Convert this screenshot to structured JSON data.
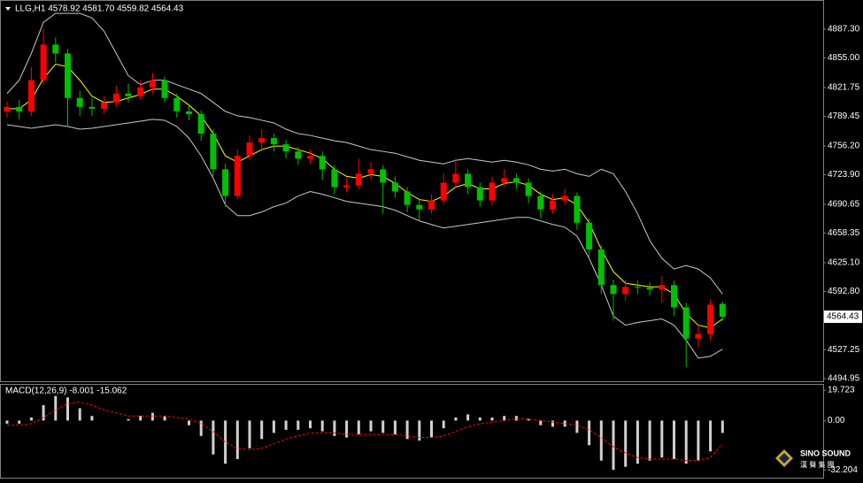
{
  "chart_data": [
    {
      "type": "candlestick",
      "title": "LLG,H1  4578.92 4581.70 4559.82 4564.43",
      "price_label": 4564.43,
      "up_color": "#ff0000",
      "down_color": "#00c000",
      "ylim": [
        4491,
        4920
      ],
      "yticks": [
        {
          "value": 4887.3,
          "label": "4887.30"
        },
        {
          "value": 4855,
          "label": "4855.00"
        },
        {
          "value": 4821.75,
          "label": "4821.75"
        },
        {
          "value": 4789.45,
          "label": "4789.45"
        },
        {
          "value": 4756.2,
          "label": "4756.20"
        },
        {
          "value": 4723.9,
          "label": "4723.90"
        },
        {
          "value": 4690.65,
          "label": "4690.65"
        },
        {
          "value": 4658.35,
          "label": "4658.35"
        },
        {
          "value": 4625.1,
          "label": "4625.10"
        },
        {
          "value": 4592.8,
          "label": "4592.80"
        },
        {
          "value": 4560.5,
          "label": "4560.50"
        },
        {
          "value": 4527.25,
          "label": "4527.25"
        },
        {
          "value": 4494.95,
          "label": "4494.95"
        }
      ],
      "open": [
        4795,
        4800,
        4795,
        4830,
        4870,
        4860,
        4810,
        4800,
        4798,
        4805,
        4815,
        4812,
        4822,
        4830,
        4810,
        4795,
        4792,
        4770,
        4730,
        4700,
        4745,
        4760,
        4765,
        4758,
        4750,
        4742,
        4745,
        4730,
        4710,
        4712,
        4725,
        4730,
        4715,
        4705,
        4690,
        4685,
        4695,
        4715,
        4725,
        4710,
        4695,
        4715,
        4720,
        4715,
        4700,
        4685,
        4695,
        4700,
        4670,
        4640,
        4600,
        4590,
        4598,
        4597,
        4595,
        4600,
        4575,
        4540,
        4545,
        4578.92
      ],
      "high": [
        4806,
        4808,
        4845,
        4888,
        4878,
        4865,
        4818,
        4810,
        4812,
        4824,
        4826,
        4830,
        4838,
        4834,
        4815,
        4802,
        4796,
        4775,
        4736,
        4752,
        4768,
        4775,
        4770,
        4763,
        4755,
        4752,
        4750,
        4735,
        4720,
        4742,
        4738,
        4735,
        4722,
        4710,
        4696,
        4702,
        4725,
        4742,
        4730,
        4715,
        4722,
        4730,
        4725,
        4720,
        4705,
        4702,
        4708,
        4704,
        4675,
        4645,
        4606,
        4606,
        4605,
        4603,
        4610,
        4605,
        4580,
        4555,
        4584,
        4581.7
      ],
      "low": [
        4788,
        4786,
        4790,
        4825,
        4850,
        4778,
        4790,
        4790,
        4792,
        4800,
        4805,
        4808,
        4815,
        4805,
        4788,
        4785,
        4762,
        4722,
        4688,
        4696,
        4740,
        4752,
        4750,
        4742,
        4735,
        4736,
        4718,
        4702,
        4704,
        4708,
        4718,
        4680,
        4698,
        4682,
        4672,
        4680,
        4690,
        4710,
        4702,
        4688,
        4690,
        4710,
        4708,
        4692,
        4675,
        4680,
        4690,
        4662,
        4630,
        4590,
        4560,
        4582,
        4590,
        4588,
        4580,
        4565,
        4508,
        4530,
        4538,
        4559.82
      ],
      "close": [
        4800,
        4795,
        4830,
        4870,
        4860,
        4810,
        4800,
        4798,
        4805,
        4815,
        4812,
        4822,
        4830,
        4810,
        4795,
        4792,
        4770,
        4730,
        4700,
        4745,
        4760,
        4765,
        4758,
        4750,
        4742,
        4745,
        4730,
        4710,
        4712,
        4725,
        4730,
        4715,
        4705,
        4690,
        4685,
        4695,
        4715,
        4725,
        4710,
        4695,
        4715,
        4720,
        4715,
        4700,
        4685,
        4695,
        4700,
        4670,
        4640,
        4600,
        4590,
        4598,
        4597,
        4595,
        4600,
        4575,
        4540,
        4545,
        4578,
        4564.43
      ],
      "overlays": [
        {
          "color": "#c8c8c8",
          "values": [
            4815,
            4830,
            4860,
            4895,
            4905,
            4905,
            4905,
            4900,
            4885,
            4860,
            4835,
            4825,
            4830,
            4830,
            4825,
            4820,
            4815,
            4805,
            4795,
            4790,
            4788,
            4785,
            4782,
            4775,
            4770,
            4768,
            4765,
            4762,
            4760,
            4756,
            4752,
            4750,
            4748,
            4744,
            4740,
            4738,
            4736,
            4740,
            4742,
            4740,
            4738,
            4740,
            4738,
            4735,
            4730,
            4728,
            4730,
            4725,
            4722,
            4730,
            4725,
            4705,
            4680,
            4650,
            4630,
            4618,
            4622,
            4618,
            4608,
            4590
          ]
        },
        {
          "color": "#c8c8c8",
          "values": [
            4780,
            4778,
            4776,
            4778,
            4780,
            4778,
            4775,
            4776,
            4778,
            4780,
            4782,
            4784,
            4786,
            4785,
            4778,
            4765,
            4745,
            4720,
            4690,
            4678,
            4678,
            4682,
            4688,
            4692,
            4700,
            4705,
            4702,
            4698,
            4694,
            4692,
            4690,
            4688,
            4684,
            4678,
            4672,
            4668,
            4664,
            4666,
            4668,
            4670,
            4672,
            4674,
            4676,
            4676,
            4672,
            4668,
            4665,
            4655,
            4630,
            4600,
            4565,
            4555,
            4558,
            4560,
            4562,
            4555,
            4538,
            4518,
            4520,
            4528
          ]
        },
        {
          "color": "#ffff00",
          "values": [
            4798,
            4798,
            4808,
            4832,
            4848,
            4845,
            4830,
            4812,
            4805,
            4806,
            4810,
            4814,
            4820,
            4820,
            4812,
            4802,
            4790,
            4770,
            4745,
            4738,
            4745,
            4752,
            4756,
            4756,
            4752,
            4748,
            4742,
            4730,
            4722,
            4720,
            4724,
            4722,
            4714,
            4704,
            4696,
            4694,
            4700,
            4710,
            4714,
            4708,
            4708,
            4714,
            4716,
            4712,
            4702,
            4696,
            4698,
            4690,
            4670,
            4640,
            4615,
            4602,
            4600,
            4598,
            4598,
            4590,
            4568,
            4555,
            4552,
            4562
          ]
        }
      ]
    },
    {
      "type": "macd",
      "title": "MACD(12,26,9) -8.001 -15.062",
      "ylim": [
        -37.1,
        23.8
      ],
      "yticks": [
        19.723,
        {
          "value": 0,
          "label": "0.00"
        },
        -32.204
      ],
      "series": [
        {
          "style": "bar",
          "color": "#d0d0d0",
          "values": [
            -2,
            -2,
            2,
            10,
            16,
            15,
            8,
            3,
            0,
            0,
            1,
            3,
            5,
            3,
            0,
            -3,
            -10,
            -22,
            -28,
            -25,
            -18,
            -12,
            -8,
            -6,
            -6,
            -5,
            -7,
            -10,
            -11,
            -9,
            -7,
            -8,
            -9,
            -12,
            -13,
            -11,
            -5,
            2,
            4,
            2,
            2,
            3,
            3,
            1,
            -3,
            -4,
            -4,
            -8,
            -16,
            -26,
            -32,
            -30,
            -28,
            -26,
            -24,
            -25,
            -28,
            -26,
            -20,
            -8.001
          ]
        },
        {
          "style": "dashed",
          "color": "#ff0000",
          "values": [
            -3,
            -3,
            -2,
            2,
            7,
            11,
            12,
            10,
            7,
            5,
            3,
            3,
            3,
            3,
            2,
            1,
            -2,
            -7,
            -14,
            -18,
            -19,
            -18,
            -15,
            -12,
            -10,
            -8,
            -8,
            -8,
            -9,
            -9,
            -9,
            -9,
            -9,
            -10,
            -11,
            -11,
            -10,
            -7,
            -4,
            -2,
            -1,
            0,
            1,
            1,
            0,
            -1,
            -2,
            -3,
            -6,
            -11,
            -17,
            -21,
            -24,
            -25,
            -25,
            -25,
            -26,
            -26,
            -24,
            -15.062
          ]
        }
      ]
    }
  ],
  "logo": {
    "name": "SINO SOUND",
    "subtitle": "漢 聲 集 團"
  }
}
